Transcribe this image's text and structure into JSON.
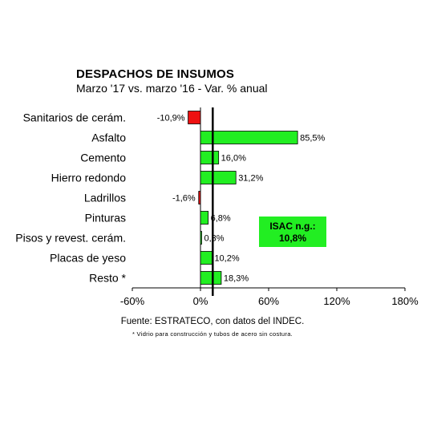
{
  "chart_data": {
    "type": "bar",
    "orientation": "horizontal",
    "title": "DESPACHOS DE INSUMOS",
    "subtitle": "Marzo '17 vs. marzo '16 - Var. % anual",
    "categories": [
      "Sanitarios de cerám.",
      "Asfalto",
      "Cemento",
      "Hierro redondo",
      "Ladrillos",
      "Pinturas",
      "Pisos y revest. cerám.",
      "Placas de yeso",
      "Resto *"
    ],
    "values": [
      -10.9,
      85.5,
      16.0,
      31.2,
      -1.6,
      6.8,
      0.3,
      10.2,
      18.3
    ],
    "data_labels": [
      "-10,9%",
      "85,5%",
      "16,0%",
      "31,2%",
      "-1,6%",
      "6,8%",
      "0,3%",
      "10,2%",
      "18,3%"
    ],
    "xlim": [
      -60,
      180
    ],
    "xticks": [
      -60,
      0,
      60,
      120,
      180
    ],
    "xtick_labels": [
      "-60%",
      "0%",
      "60%",
      "120%",
      "180%"
    ],
    "reference_line": {
      "value": 10.8
    },
    "annotation": {
      "line1": "ISAC n.g.:",
      "line2": "10,8%"
    },
    "source": "Fuente: ESTRATECO, con datos del INDEC.",
    "footnote": "* Vidrio para construcción y tubos de acero sin costura.",
    "colors": {
      "positive": "#22ee22",
      "negative": "#ee1111",
      "annotation_bg": "#22ee22",
      "reference_line": "#000000"
    },
    "grid": false
  }
}
